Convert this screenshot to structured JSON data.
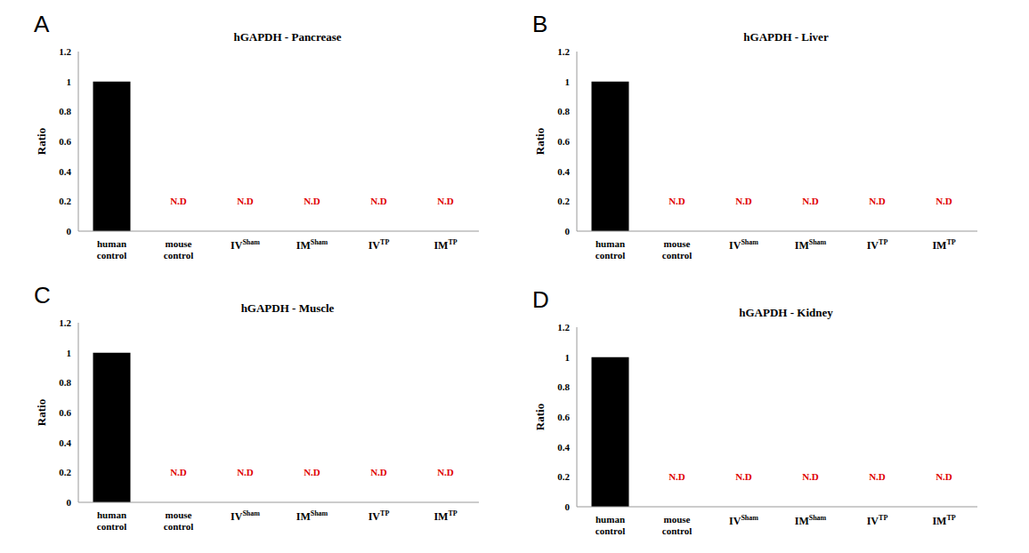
{
  "chart_data": [
    {
      "type": "bar",
      "panel_label": "A",
      "title": "hGAPDH - Pancrease",
      "ylabel": "Ratio",
      "categories": [
        "human control",
        "mouse control",
        "IVSham",
        "IMSham",
        "IVTP",
        "IMTP"
      ],
      "values": [
        1,
        null,
        null,
        null,
        null,
        null
      ],
      "value_labels": [
        null,
        "N.D",
        "N.D",
        "N.D",
        "N.D",
        "N.D"
      ],
      "data_labels": true,
      "color": "#000000",
      "ylim": [
        0,
        1.2
      ],
      "yticks": [
        0,
        0.2,
        0.4,
        0.6,
        0.8,
        1,
        1.2
      ]
    },
    {
      "type": "bar",
      "panel_label": "B",
      "title": "hGAPDH - Liver",
      "ylabel": "Ratio",
      "categories": [
        "human control",
        "mouse control",
        "IVSham",
        "IMSham",
        "IVTP",
        "IMTP"
      ],
      "values": [
        1,
        null,
        null,
        null,
        null,
        null
      ],
      "value_labels": [
        null,
        "N.D",
        "N.D",
        "N.D",
        "N.D",
        "N.D"
      ],
      "data_labels": true,
      "color": "#000000",
      "ylim": [
        0,
        1.2
      ],
      "yticks": [
        0,
        0.2,
        0.4,
        0.6,
        0.8,
        1,
        1.2
      ]
    },
    {
      "type": "bar",
      "panel_label": "C",
      "title": "hGAPDH - Muscle",
      "ylabel": "Ratio",
      "categories": [
        "human control",
        "mouse control",
        "IVSham",
        "IMSham",
        "IVTP",
        "IMTP"
      ],
      "values": [
        1,
        null,
        null,
        null,
        null,
        null
      ],
      "value_labels": [
        null,
        "N.D",
        "N.D",
        "N.D",
        "N.D",
        "N.D"
      ],
      "data_labels": true,
      "color": "#000000",
      "ylim": [
        0,
        1.2
      ],
      "yticks": [
        0,
        0.2,
        0.4,
        0.6,
        0.8,
        1,
        1.2
      ]
    },
    {
      "type": "bar",
      "panel_label": "D",
      "title": "hGAPDH - Kidney",
      "ylabel": "Ratio",
      "categories": [
        "human control",
        "mouse control",
        "IVSham",
        "IMSham",
        "IVTP",
        "IMTP"
      ],
      "values": [
        1,
        null,
        null,
        null,
        null,
        null
      ],
      "value_labels": [
        null,
        "N.D",
        "N.D",
        "N.D",
        "N.D",
        "N.D"
      ],
      "data_labels": true,
      "color": "#000000",
      "ylim": [
        0,
        1.2
      ],
      "yticks": [
        0,
        0.2,
        0.4,
        0.6,
        0.8,
        1,
        1.2
      ]
    }
  ]
}
